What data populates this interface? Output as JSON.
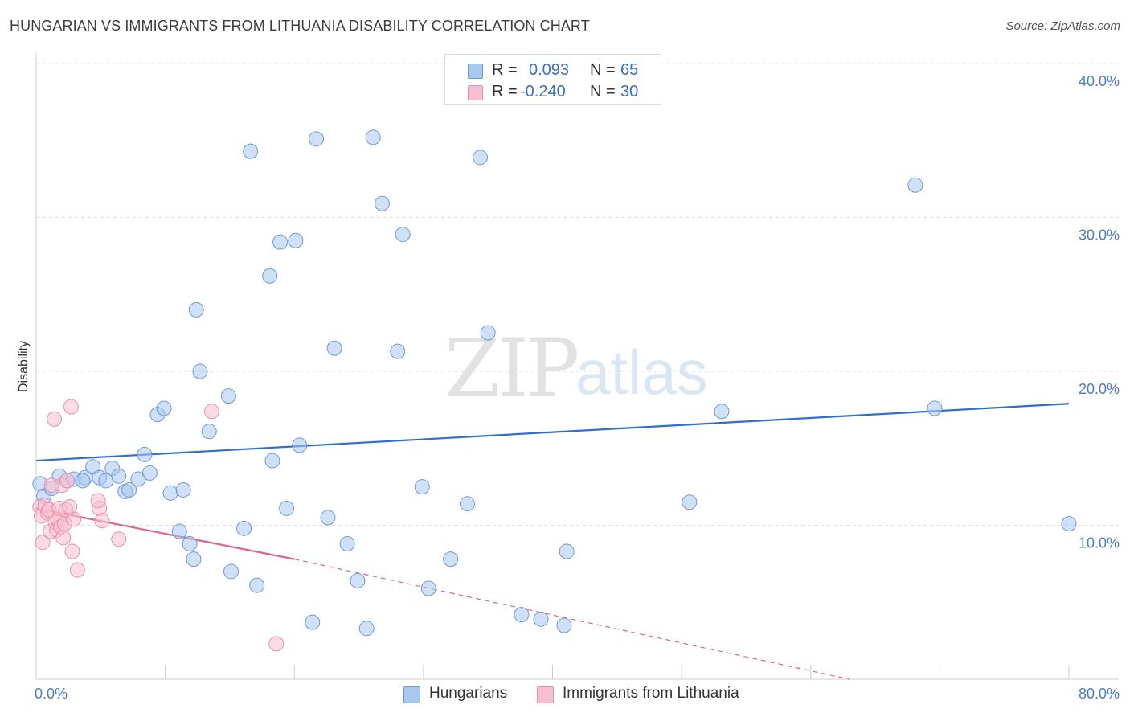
{
  "title": "HUNGARIAN VS IMMIGRANTS FROM LITHUANIA DISABILITY CORRELATION CHART",
  "source": "Source: ZipAtlas.com",
  "watermark": {
    "zip": "ZIP",
    "atlas": "atlas"
  },
  "legend": {
    "rows": [
      {
        "r_label": "R =",
        "r_value": "0.093",
        "n_label": "N =",
        "n_value": "65",
        "color": "#a9c8f0",
        "stroke": "#6f9ad6"
      },
      {
        "r_label": "R =",
        "r_value": "-0.240",
        "n_label": "N =",
        "n_value": "30",
        "color": "#f7bfd0",
        "stroke": "#e591ad"
      }
    ]
  },
  "bottom_legend": {
    "hungarians": "Hungarians",
    "lithuania": "Immigrants from Lithuania"
  },
  "chart_data": {
    "type": "scatter",
    "title": "HUNGARIAN VS IMMIGRANTS FROM LITHUANIA DISABILITY CORRELATION CHART",
    "xlabel": "",
    "ylabel": "Disability",
    "xlim": [
      0,
      80
    ],
    "ylim": [
      0,
      40
    ],
    "x_tick_labels": {
      "min": "0.0%",
      "max": "80.0%"
    },
    "y_ticks": [
      10,
      20,
      30,
      40
    ],
    "y_tick_labels": [
      "10.0%",
      "20.0%",
      "30.0%",
      "40.0%"
    ],
    "series": [
      {
        "name": "Hungarians",
        "color": "#a9c8f0",
        "stroke": "#6f9ad6",
        "line_color": "#2f6fd0",
        "trend": {
          "x": [
            0,
            80
          ],
          "y": [
            14.2,
            17.9
          ]
        },
        "points": [
          [
            0.3,
            12.7
          ],
          [
            0.6,
            11.9
          ],
          [
            1.2,
            12.4
          ],
          [
            1.8,
            13.2
          ],
          [
            2.4,
            12.9
          ],
          [
            2.9,
            13.0
          ],
          [
            3.8,
            13.1
          ],
          [
            3.6,
            12.9
          ],
          [
            4.4,
            13.8
          ],
          [
            4.9,
            13.1
          ],
          [
            5.4,
            12.9
          ],
          [
            5.9,
            13.7
          ],
          [
            6.4,
            13.2
          ],
          [
            6.9,
            12.2
          ],
          [
            7.2,
            12.3
          ],
          [
            7.9,
            13.0
          ],
          [
            8.4,
            14.6
          ],
          [
            8.8,
            13.4
          ],
          [
            9.4,
            17.2
          ],
          [
            9.9,
            17.6
          ],
          [
            10.4,
            12.1
          ],
          [
            11.4,
            12.3
          ],
          [
            11.1,
            9.6
          ],
          [
            11.9,
            8.8
          ],
          [
            12.2,
            7.8
          ],
          [
            12.7,
            20.0
          ],
          [
            12.4,
            24.0
          ],
          [
            13.4,
            16.1
          ],
          [
            14.9,
            18.4
          ],
          [
            16.1,
            9.8
          ],
          [
            15.1,
            7.0
          ],
          [
            16.6,
            34.3
          ],
          [
            17.1,
            6.1
          ],
          [
            18.1,
            26.2
          ],
          [
            18.3,
            14.2
          ],
          [
            18.9,
            28.4
          ],
          [
            19.4,
            11.1
          ],
          [
            20.1,
            28.5
          ],
          [
            20.4,
            15.2
          ],
          [
            21.4,
            3.7
          ],
          [
            21.7,
            35.1
          ],
          [
            22.6,
            10.5
          ],
          [
            23.1,
            21.5
          ],
          [
            24.1,
            8.8
          ],
          [
            24.9,
            6.4
          ],
          [
            25.6,
            3.3
          ],
          [
            26.1,
            35.2
          ],
          [
            26.8,
            30.9
          ],
          [
            28.0,
            21.3
          ],
          [
            28.4,
            28.9
          ],
          [
            29.9,
            12.5
          ],
          [
            30.4,
            5.9
          ],
          [
            32.1,
            7.8
          ],
          [
            33.4,
            11.4
          ],
          [
            34.4,
            33.9
          ],
          [
            35.0,
            22.5
          ],
          [
            37.6,
            4.2
          ],
          [
            39.1,
            3.9
          ],
          [
            40.9,
            3.5
          ],
          [
            41.1,
            8.3
          ],
          [
            50.6,
            11.5
          ],
          [
            53.1,
            17.4
          ],
          [
            68.1,
            32.1
          ],
          [
            69.6,
            17.6
          ],
          [
            80.0,
            10.1
          ]
        ]
      },
      {
        "name": "Immigrants from Lithuania",
        "color": "#f7bfd0",
        "stroke": "#e591ad",
        "line_color": "#e0638f",
        "trend": {
          "x": [
            0,
            20
          ],
          "y": [
            11.1,
            7.8
          ]
        },
        "trend_dashed": {
          "x": [
            20,
            63
          ],
          "y": [
            7.8,
            0.0
          ]
        },
        "points": [
          [
            0.3,
            11.2
          ],
          [
            0.4,
            10.6
          ],
          [
            0.5,
            8.9
          ],
          [
            0.7,
            11.3
          ],
          [
            0.9,
            10.8
          ],
          [
            1.0,
            11.0
          ],
          [
            1.1,
            9.6
          ],
          [
            1.2,
            12.6
          ],
          [
            1.4,
            16.9
          ],
          [
            1.5,
            10.2
          ],
          [
            1.6,
            9.7
          ],
          [
            1.7,
            10.4
          ],
          [
            1.8,
            11.1
          ],
          [
            1.9,
            9.9
          ],
          [
            2.0,
            12.6
          ],
          [
            2.1,
            9.2
          ],
          [
            2.2,
            10.1
          ],
          [
            2.3,
            11.0
          ],
          [
            2.4,
            12.9
          ],
          [
            2.7,
            17.7
          ],
          [
            2.8,
            8.3
          ],
          [
            2.9,
            10.4
          ],
          [
            2.6,
            11.2
          ],
          [
            3.2,
            7.1
          ],
          [
            4.9,
            11.1
          ],
          [
            5.1,
            10.3
          ],
          [
            6.4,
            9.1
          ],
          [
            13.6,
            17.4
          ],
          [
            4.8,
            11.6
          ],
          [
            18.6,
            2.3
          ]
        ]
      }
    ]
  }
}
